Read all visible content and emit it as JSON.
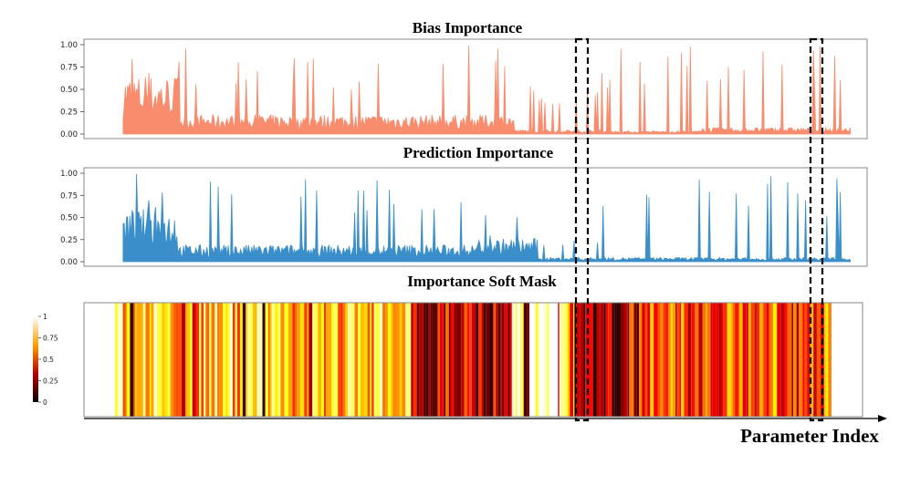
{
  "chart_data": [
    {
      "type": "area",
      "title": "Bias Importance",
      "ylim": [
        0,
        1
      ],
      "yticks": [
        "0.00",
        "0.25",
        "0.50",
        "0.75",
        "1.00"
      ],
      "color": "#fa8c6e",
      "series_profile": [
        {
          "segment": [
            0.05,
            0.12
          ],
          "typical_level": 0.55,
          "peak": 1.0
        },
        {
          "segment": [
            0.12,
            0.55
          ],
          "typical_level": 0.18,
          "peak": 1.0
        },
        {
          "segment": [
            0.55,
            0.66
          ],
          "typical_level": 0.04,
          "peak": 0.55
        },
        {
          "segment": [
            0.66,
            0.79
          ],
          "typical_level": 0.03,
          "peak": 1.0
        },
        {
          "segment": [
            0.79,
            0.98
          ],
          "typical_level": 0.06,
          "peak": 1.0
        }
      ]
    },
    {
      "type": "area",
      "title": "Prediction Importance",
      "ylim": [
        0,
        1
      ],
      "yticks": [
        "0.00",
        "0.25",
        "0.50",
        "0.75",
        "1.00"
      ],
      "color": "#3a8fca",
      "series_profile": [
        {
          "segment": [
            0.05,
            0.12
          ],
          "typical_level": 0.5,
          "peak": 1.0
        },
        {
          "segment": [
            0.12,
            0.5
          ],
          "typical_level": 0.16,
          "peak": 1.0
        },
        {
          "segment": [
            0.5,
            0.58
          ],
          "typical_level": 0.22,
          "peak": 0.55
        },
        {
          "segment": [
            0.58,
            0.66
          ],
          "typical_level": 0.04,
          "peak": 0.3
        },
        {
          "segment": [
            0.66,
            0.98
          ],
          "typical_level": 0.04,
          "peak": 1.0
        }
      ]
    },
    {
      "type": "heatmap",
      "title": "Importance Soft Mask",
      "colormap": "hot",
      "xlabel": "Parameter Index",
      "colorbar_ticks": [
        "1",
        "0.75",
        "0.5",
        "0.25",
        "0"
      ],
      "colorbar_range": [
        0,
        1
      ],
      "value_profile": [
        {
          "segment": [
            0.0,
            0.04
          ],
          "typical_value": null
        },
        {
          "segment": [
            0.04,
            0.42
          ],
          "typical_value": 0.7
        },
        {
          "segment": [
            0.42,
            0.55
          ],
          "typical_value": 0.3
        },
        {
          "segment": [
            0.55,
            0.63
          ],
          "typical_value": 0.9
        },
        {
          "segment": [
            0.63,
            0.7
          ],
          "typical_value": 0.15
        },
        {
          "segment": [
            0.7,
            0.96
          ],
          "typical_value": 0.45
        },
        {
          "segment": [
            0.96,
            1.0
          ],
          "typical_value": null
        }
      ]
    }
  ],
  "highlight_boxes": [
    {
      "label": "highlight-region-1",
      "x_range_fraction": [
        0.63,
        0.645
      ]
    },
    {
      "label": "highlight-region-2",
      "x_range_fraction": [
        0.955,
        0.97
      ]
    }
  ]
}
